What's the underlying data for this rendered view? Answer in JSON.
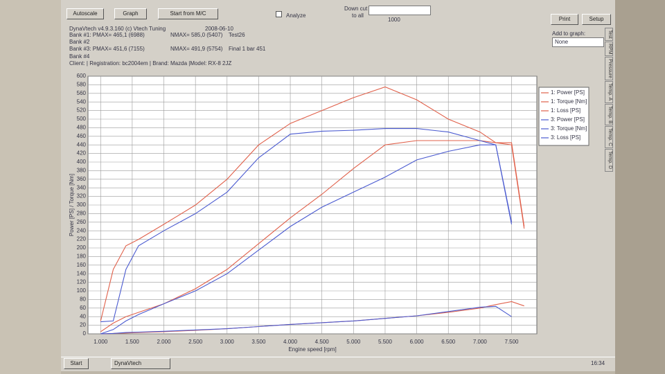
{
  "toolbar": {
    "autoscale": "Autoscale",
    "graph": "Graph",
    "start": "Start from M/C",
    "analyze": "Analyze",
    "down_cut": "Down cut",
    "to_all": "to all",
    "slider_value": "1000",
    "print": "Print",
    "setup": "Setup"
  },
  "header": {
    "title": "DynaVtech v4.9.3.160 (c) Vtech Tuning",
    "date": "2008-06-10",
    "bank1": "Bank #1: PMAX= 465,1 (6988)",
    "bank1_nmax": "NMAX= 585,0 (5407)",
    "bank1_test": "Test26",
    "bank2": "Bank #2",
    "bank3": "Bank #3: PMAX= 451,6 (7155)",
    "bank3_nmax": "NMAX= 491,9 (5754)",
    "bank3_test": "Final 1 bar 451",
    "bank4": "Bank #4",
    "client": "Client:   | Registration:  bc2004em | Brand:  Mazda |Model:  RX-8 2JZ"
  },
  "add_to_graph": {
    "label": "Add to graph:",
    "value": "None"
  },
  "side_tabs": [
    "Test",
    "RPM",
    "Pressure",
    "Temp. A",
    "Temp. B",
    "Temp. C",
    "Temp. D"
  ],
  "taskbar": {
    "start": "Start",
    "app": "DynaVtech",
    "clock": "16:34"
  },
  "chart_data": {
    "type": "line",
    "x_label": "Engine speed [rpm]",
    "y_label": "Power [PS] / Torque [Nm]",
    "x": [
      1000,
      1200,
      1400,
      1600,
      2000,
      2500,
      3000,
      3500,
      4000,
      4500,
      5000,
      5500,
      6000,
      6500,
      7000,
      7250,
      7500,
      7700
    ],
    "xlim": [
      800,
      7900
    ],
    "xticks": [
      {
        "value": 1000,
        "label": "1.000"
      },
      {
        "value": 1500,
        "label": "1.500"
      },
      {
        "value": 2000,
        "label": "2.000"
      },
      {
        "value": 2500,
        "label": "2.500"
      },
      {
        "value": 3000,
        "label": "3.000"
      },
      {
        "value": 3500,
        "label": "3.500"
      },
      {
        "value": 4000,
        "label": "4.000"
      },
      {
        "value": 4500,
        "label": "4.500"
      },
      {
        "value": 5000,
        "label": "5.000"
      },
      {
        "value": 5500,
        "label": "5.500"
      },
      {
        "value": 6000,
        "label": "6.000"
      },
      {
        "value": 6500,
        "label": "6.500"
      },
      {
        "value": 7000,
        "label": "7.000"
      },
      {
        "value": 7500,
        "label": "7.500"
      }
    ],
    "ylim": [
      0,
      600
    ],
    "yticks": [
      0,
      20,
      40,
      60,
      80,
      100,
      120,
      140,
      160,
      180,
      200,
      220,
      240,
      260,
      280,
      300,
      320,
      340,
      360,
      380,
      400,
      420,
      440,
      460,
      480,
      500,
      520,
      540,
      560,
      580,
      600
    ],
    "grid": true,
    "series": [
      {
        "name": "1: Power [PS]",
        "color": "#e0604a",
        "values": [
          5,
          25,
          40,
          50,
          70,
          105,
          150,
          210,
          270,
          325,
          385,
          440,
          450,
          450,
          450,
          445,
          445,
          250
        ]
      },
      {
        "name": "1: Torque [Nm]",
        "color": "#e0604a",
        "values": [
          30,
          150,
          205,
          220,
          255,
          300,
          360,
          440,
          490,
          520,
          550,
          575,
          545,
          500,
          470,
          445,
          440,
          245
        ]
      },
      {
        "name": "1: Loss [PS]",
        "color": "#e0604a",
        "values": [
          0,
          1,
          2,
          3,
          5,
          8,
          12,
          17,
          22,
          26,
          30,
          36,
          42,
          50,
          60,
          68,
          75,
          65
        ]
      },
      {
        "name": "3: Power [PS]",
        "color": "#4a5ad0",
        "values": [
          0,
          10,
          30,
          45,
          70,
          100,
          140,
          195,
          250,
          295,
          330,
          365,
          405,
          425,
          440,
          440,
          255,
          null
        ]
      },
      {
        "name": "3: Torque [Nm]",
        "color": "#4a5ad0",
        "values": [
          28,
          30,
          150,
          205,
          240,
          280,
          330,
          410,
          465,
          472,
          474,
          478,
          478,
          470,
          450,
          440,
          260,
          null
        ]
      },
      {
        "name": "3: Loss [PS]",
        "color": "#4a5ad0",
        "values": [
          0,
          1,
          3,
          4,
          6,
          9,
          12,
          17,
          22,
          26,
          30,
          36,
          42,
          52,
          62,
          64,
          40,
          null
        ]
      }
    ]
  }
}
